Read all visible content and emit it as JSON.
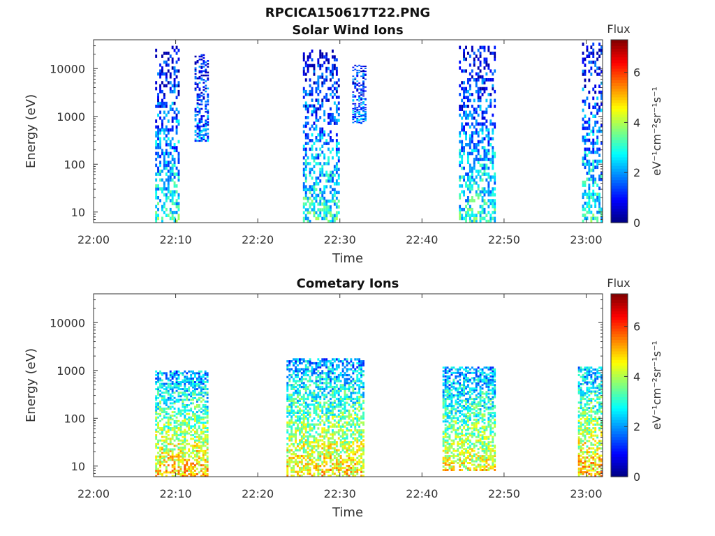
{
  "figure_title": "RPCICA150617T22.PNG",
  "colors": {
    "axis": "#333333",
    "background": "#ffffff"
  },
  "chart_data": [
    {
      "type": "heatmap",
      "title": "Solar Wind Ions",
      "xlabel": "Time",
      "ylabel": "Energy (eV)",
      "x_ticks": [
        "22:00",
        "22:10",
        "22:20",
        "22:30",
        "22:40",
        "22:50",
        "23:00"
      ],
      "x_range_minutes": [
        0,
        62
      ],
      "y_scale": "log",
      "y_ticks": [
        "10",
        "100",
        "1000",
        "10000"
      ],
      "y_range": [
        6,
        40000
      ],
      "colorbar": {
        "label": "Flux",
        "units": "eV⁻¹cm⁻²sr⁻¹s⁻¹",
        "ticks": [
          "0",
          "2",
          "4",
          "6"
        ],
        "range": [
          0,
          7.3
        ],
        "colormap": "jet"
      },
      "bursts": [
        {
          "start_min": 7.5,
          "end_min": 10.5,
          "e_min": 6,
          "e_max": 30000,
          "flux_low_e": 3.0,
          "flux_high_e": 0.6
        },
        {
          "start_min": 12.3,
          "end_min": 14.0,
          "e_min": 300,
          "e_max": 20000,
          "flux_low_e": 1.8,
          "flux_high_e": 0.8
        },
        {
          "start_min": 25.5,
          "end_min": 30.0,
          "e_min": 6,
          "e_max": 25000,
          "flux_low_e": 3.0,
          "flux_high_e": 0.6
        },
        {
          "start_min": 31.5,
          "end_min": 33.2,
          "e_min": 700,
          "e_max": 12000,
          "flux_low_e": 1.8,
          "flux_high_e": 1.0
        },
        {
          "start_min": 44.5,
          "end_min": 49.0,
          "e_min": 6,
          "e_max": 30000,
          "flux_low_e": 3.0,
          "flux_high_e": 0.6
        },
        {
          "start_min": 59.5,
          "end_min": 62.0,
          "e_min": 6,
          "e_max": 35000,
          "flux_low_e": 3.0,
          "flux_high_e": 0.6
        }
      ]
    },
    {
      "type": "heatmap",
      "title": "Cometary Ions",
      "xlabel": "Time",
      "ylabel": "Energy (eV)",
      "x_ticks": [
        "22:00",
        "22:10",
        "22:20",
        "22:30",
        "22:40",
        "22:50",
        "23:00"
      ],
      "x_range_minutes": [
        0,
        62
      ],
      "y_scale": "log",
      "y_ticks": [
        "10",
        "100",
        "1000",
        "10000"
      ],
      "y_range": [
        6,
        40000
      ],
      "colorbar": {
        "label": "Flux",
        "units": "eV⁻¹cm⁻²sr⁻¹s⁻¹",
        "ticks": [
          "0",
          "2",
          "4",
          "6"
        ],
        "range": [
          0,
          7.3
        ],
        "colormap": "jet"
      },
      "bursts": [
        {
          "start_min": 7.5,
          "end_min": 14.0,
          "e_min": 6,
          "e_max": 1000,
          "flux_low_e": 5.0,
          "flux_high_e": 2.0
        },
        {
          "start_min": 23.5,
          "end_min": 33.0,
          "e_min": 6,
          "e_max": 1800,
          "flux_low_e": 4.8,
          "flux_high_e": 2.0
        },
        {
          "start_min": 42.5,
          "end_min": 49.0,
          "e_min": 8,
          "e_max": 1200,
          "flux_low_e": 4.5,
          "flux_high_e": 2.0
        },
        {
          "start_min": 59.0,
          "end_min": 62.0,
          "e_min": 6,
          "e_max": 1200,
          "flux_low_e": 5.0,
          "flux_high_e": 2.2
        }
      ]
    }
  ]
}
